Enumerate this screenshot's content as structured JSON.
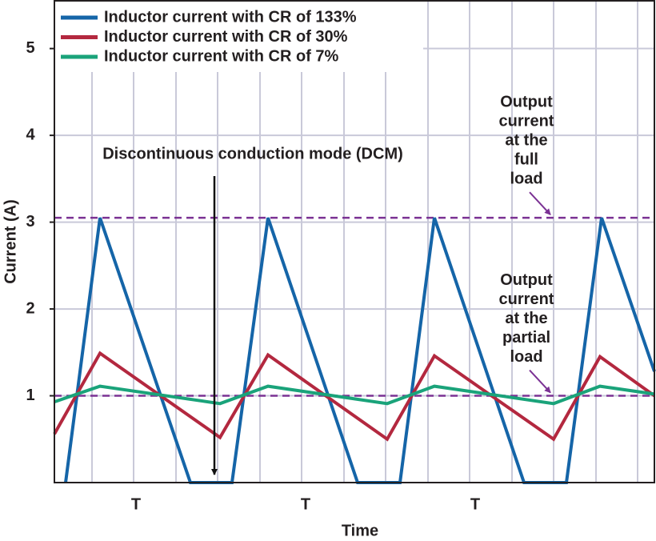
{
  "chart_data": {
    "type": "line",
    "xlabel": "Time",
    "ylabel": "Current (A)",
    "xlim": [
      0,
      750
    ],
    "ylim": [
      0,
      5.55
    ],
    "yticks": [
      1,
      2,
      3,
      4,
      5
    ],
    "xticks": [
      {
        "value": 102,
        "label": "T"
      },
      {
        "value": 314,
        "label": "T"
      },
      {
        "value": 526,
        "label": "T"
      }
    ],
    "xgrid": [
      47,
      99,
      152,
      204,
      257,
      309,
      362,
      414,
      467,
      519,
      572,
      624,
      677,
      729
    ],
    "grid": true,
    "legend": "upper left",
    "series": [
      {
        "name": "Inductor current with CR of 133%",
        "color": "#1565a8",
        "x": [
          14,
          57,
          170,
          222,
          267,
          379,
          432,
          475,
          587,
          640,
          684,
          750
        ],
        "values": [
          0,
          3.05,
          0,
          0,
          3.05,
          0,
          0,
          3.05,
          0,
          0,
          3.05,
          1.28
        ]
      },
      {
        "name": "Inductor current with CR of 30%",
        "color": "#b3283f",
        "x": [
          0,
          57,
          207,
          267,
          416,
          475,
          624,
          682,
          750
        ],
        "values": [
          0.56,
          1.49,
          0.52,
          1.47,
          0.5,
          1.46,
          0.5,
          1.45,
          1.0
        ]
      },
      {
        "name": "Inductor current with CR of 7%",
        "color": "#1aa37a",
        "x": [
          0,
          57,
          207,
          267,
          416,
          475,
          624,
          682,
          750
        ],
        "values": [
          0.93,
          1.11,
          0.91,
          1.11,
          0.91,
          1.11,
          0.91,
          1.11,
          1.02
        ]
      }
    ],
    "reference_lines": [
      {
        "value": 3.05,
        "color": "#7b3294",
        "text": [
          "Output",
          "current",
          "at the",
          "full",
          "load"
        ]
      },
      {
        "value": 1.0,
        "color": "#7b3294",
        "text": [
          "Output",
          "current",
          "at the",
          "partial",
          "load"
        ]
      }
    ],
    "annotation": "Discontinuous conduction mode (DCM)"
  }
}
